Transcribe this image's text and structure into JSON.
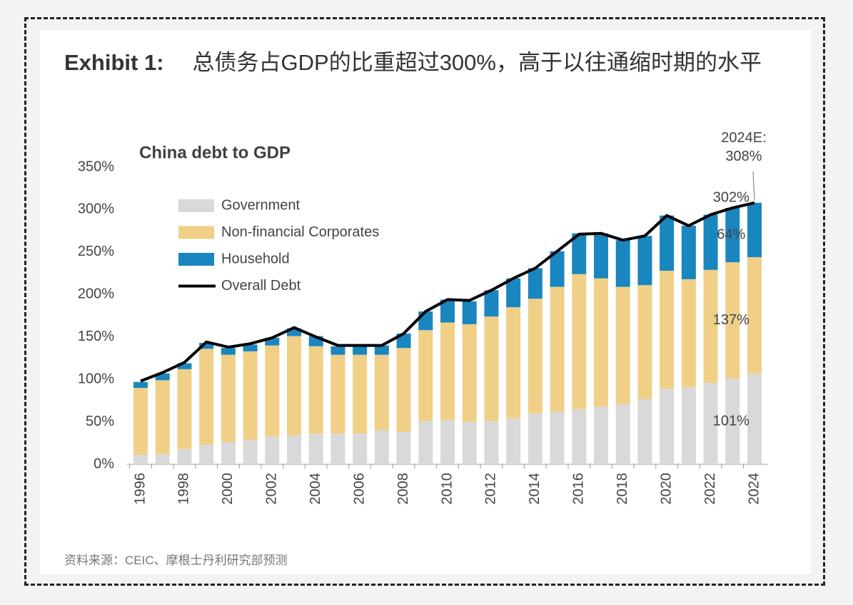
{
  "exhibit": "Exhibit 1:",
  "headline": "总债务占GDP的比重超过300%，高于以往通缩时期的水平",
  "source": "资料来源：CEIC、摩根士丹利研究部预测",
  "chart_data": {
    "type": "bar",
    "stacked": true,
    "title": "China debt to GDP",
    "categories": [
      "1996",
      null,
      "1998",
      null,
      "2000",
      null,
      "2002",
      null,
      "2004",
      null,
      "2006",
      null,
      "2008",
      null,
      "2010",
      null,
      "2012",
      null,
      "2014",
      null,
      "2016",
      null,
      "2018",
      null,
      "2020",
      null,
      "2022",
      null,
      "2024"
    ],
    "series": [
      {
        "name": "Government",
        "type": "bar",
        "color": "#d9d9d9",
        "values": [
          11,
          12,
          18,
          23,
          26,
          29,
          33,
          34,
          36,
          36,
          36,
          40,
          38,
          51,
          52,
          50,
          51,
          54,
          60,
          62,
          65,
          68,
          71,
          77,
          89,
          91,
          96,
          101,
          107
        ],
        "value_labels": [
          null,
          null,
          null,
          null,
          null,
          null,
          null,
          null,
          null,
          null,
          null,
          null,
          null,
          null,
          null,
          null,
          null,
          null,
          null,
          null,
          null,
          null,
          null,
          null,
          null,
          null,
          null,
          "101%",
          null
        ]
      },
      {
        "name": "Non-financial Corporates",
        "type": "bar",
        "color": "#f0cf87",
        "values": [
          79,
          87,
          94,
          113,
          103,
          104,
          107,
          117,
          103,
          93,
          93,
          89,
          99,
          107,
          115,
          115,
          123,
          131,
          135,
          147,
          159,
          151,
          138,
          134,
          139,
          127,
          133,
          137,
          137
        ],
        "value_labels": [
          null,
          null,
          null,
          null,
          null,
          null,
          null,
          null,
          null,
          null,
          null,
          null,
          null,
          null,
          null,
          null,
          null,
          null,
          null,
          null,
          null,
          null,
          null,
          null,
          null,
          null,
          null,
          "137%",
          null
        ]
      },
      {
        "name": "Household",
        "type": "bar",
        "color": "#1a86bf",
        "values": [
          7,
          8,
          7,
          7,
          8,
          8,
          9,
          9,
          12,
          10,
          11,
          11,
          17,
          22,
          27,
          27,
          31,
          34,
          36,
          42,
          48,
          53,
          55,
          58,
          65,
          63,
          65,
          64,
          64
        ],
        "value_labels": [
          null,
          null,
          null,
          null,
          null,
          null,
          null,
          null,
          null,
          null,
          null,
          null,
          null,
          null,
          null,
          null,
          null,
          null,
          null,
          null,
          null,
          null,
          null,
          null,
          null,
          null,
          null,
          "64%",
          null
        ]
      },
      {
        "name": "Overall Debt",
        "type": "line",
        "color": "#000000",
        "values": [
          98,
          108,
          120,
          144,
          138,
          142,
          149,
          161,
          150,
          140,
          140,
          140,
          154,
          180,
          194,
          193,
          205,
          219,
          231,
          251,
          271,
          272,
          264,
          269,
          293,
          281,
          294,
          302,
          308
        ],
        "value_labels": [
          null,
          null,
          null,
          null,
          null,
          null,
          null,
          null,
          null,
          null,
          null,
          null,
          null,
          null,
          null,
          null,
          null,
          null,
          null,
          null,
          null,
          null,
          null,
          null,
          null,
          null,
          null,
          "302%",
          "2024E: 308%"
        ]
      }
    ],
    "ylim": [
      0,
      350
    ],
    "yticks": [
      {
        "value": 0,
        "label": "0%"
      },
      {
        "value": 50,
        "label": "50%"
      },
      {
        "value": 100,
        "label": "100%"
      },
      {
        "value": 150,
        "label": "150%"
      },
      {
        "value": 200,
        "label": "200%"
      },
      {
        "value": 250,
        "label": "250%"
      },
      {
        "value": 300,
        "label": "300%"
      },
      {
        "value": 350,
        "label": "350%"
      }
    ],
    "grid": false,
    "legend": "upper left"
  }
}
